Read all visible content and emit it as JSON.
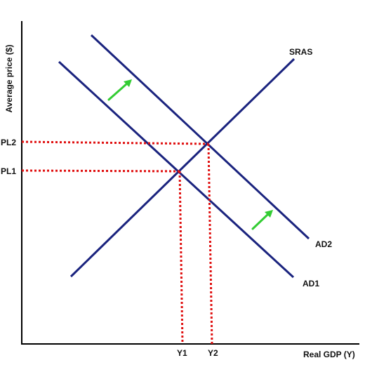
{
  "axes": {
    "x_label": "Real GDP (Y)",
    "y_label": "Average price ($)"
  },
  "curves": {
    "sras": "SRAS",
    "ad1": "AD1",
    "ad2": "AD2"
  },
  "levels": {
    "pl1": "PL1",
    "pl2": "PL2",
    "y1": "Y1",
    "y2": "Y2"
  },
  "colors": {
    "curve": "#1a237e",
    "guide": "#e01010",
    "arrow": "#33cc33",
    "axis": "#000000"
  },
  "icons": {
    "shift_arrow": "arrow-up-right-icon"
  }
}
